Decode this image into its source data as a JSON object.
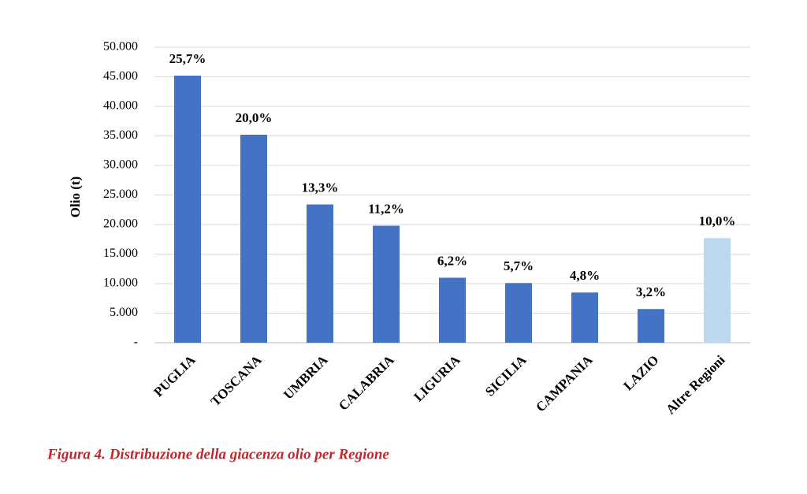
{
  "chart_data": {
    "type": "bar",
    "y_label": "Olio (t)",
    "caption": "Figura 4. Distribuzione della giacenza olio per Regione",
    "categories": [
      "PUGLIA",
      "TOSCANA",
      "UMBRIA",
      "CALABRIA",
      "LIGURIA",
      "SICILIA",
      "CAMPANIA",
      "LAZIO",
      "Altre Regioni"
    ],
    "values": [
      45200,
      35200,
      23400,
      19800,
      11000,
      10100,
      8500,
      5700,
      17700
    ],
    "share_labels": [
      "25,7%",
      "20,0%",
      "13,3%",
      "11,2%",
      "6,2%",
      "5,7%",
      "4,8%",
      "3,2%",
      "10,0%"
    ],
    "colors": [
      "#4472c4",
      "#4472c4",
      "#4472c4",
      "#4472c4",
      "#4472c4",
      "#4472c4",
      "#4472c4",
      "#4472c4",
      "#bdd7ee"
    ],
    "ylim": [
      0,
      50000
    ],
    "yticks": [
      {
        "value": 0,
        "label": "-"
      },
      {
        "value": 5000,
        "label": "5.000"
      },
      {
        "value": 10000,
        "label": "10.000"
      },
      {
        "value": 15000,
        "label": "15.000"
      },
      {
        "value": 20000,
        "label": "20.000"
      },
      {
        "value": 25000,
        "label": "25.000"
      },
      {
        "value": 30000,
        "label": "30.000"
      },
      {
        "value": 35000,
        "label": "35.000"
      },
      {
        "value": 40000,
        "label": "40.000"
      },
      {
        "value": 45000,
        "label": "45.000"
      },
      {
        "value": 50000,
        "label": "50.000"
      }
    ],
    "grid": true
  }
}
